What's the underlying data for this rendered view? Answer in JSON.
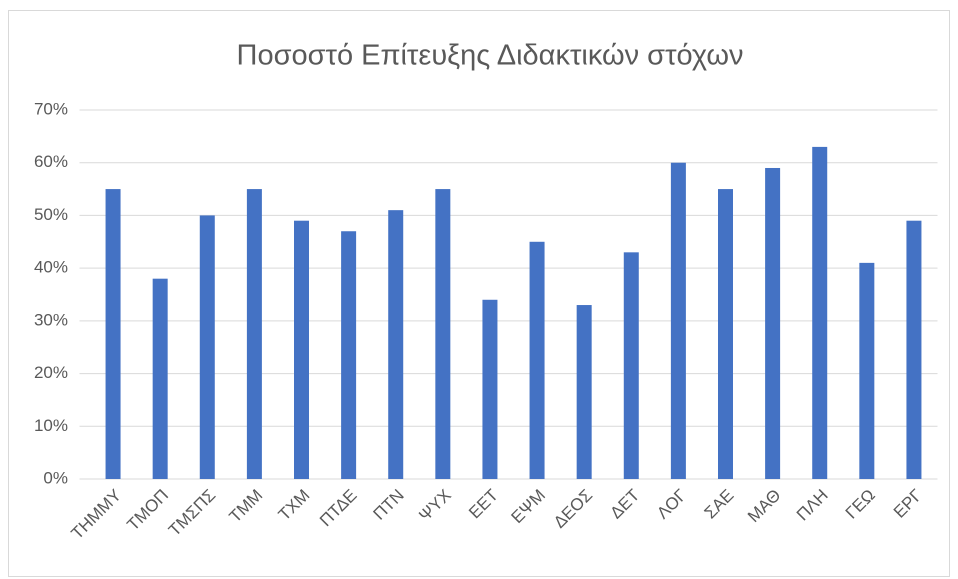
{
  "chart_data": {
    "type": "bar",
    "title": "Ποσοστό Επίτευξης Διδακτικών στόχων",
    "categories": [
      "ΤΗΜΜΥ",
      "ΤΜΟΠ",
      "ΤΜΣΠΣ",
      "ΤΜΜ",
      "ΤΧΜ",
      "ΠΤΔΕ",
      "ΠΤΝ",
      "ΨΥΧ",
      "ΕΕΤ",
      "ΕΨΜ",
      "ΔΕΟΣ",
      "ΔΕΤ",
      "ΛΟΓ",
      "ΣΑΕ",
      "ΜΑΘ",
      "ΠΛΗ",
      "ΓΕΩ",
      "ΕΡΓ"
    ],
    "values": [
      55,
      38,
      50,
      55,
      49,
      47,
      51,
      55,
      34,
      45,
      33,
      43,
      60,
      55,
      59,
      63,
      41,
      49
    ],
    "color": "#4472c4",
    "ylim": [
      0,
      70
    ],
    "yticks": [
      {
        "value": 0,
        "label": "0%"
      },
      {
        "value": 10,
        "label": "10%"
      },
      {
        "value": 20,
        "label": "20%"
      },
      {
        "value": 30,
        "label": "30%"
      },
      {
        "value": 40,
        "label": "40%"
      },
      {
        "value": 50,
        "label": "50%"
      },
      {
        "value": 60,
        "label": "60%"
      },
      {
        "value": 70,
        "label": "70%"
      }
    ],
    "grid": true
  }
}
